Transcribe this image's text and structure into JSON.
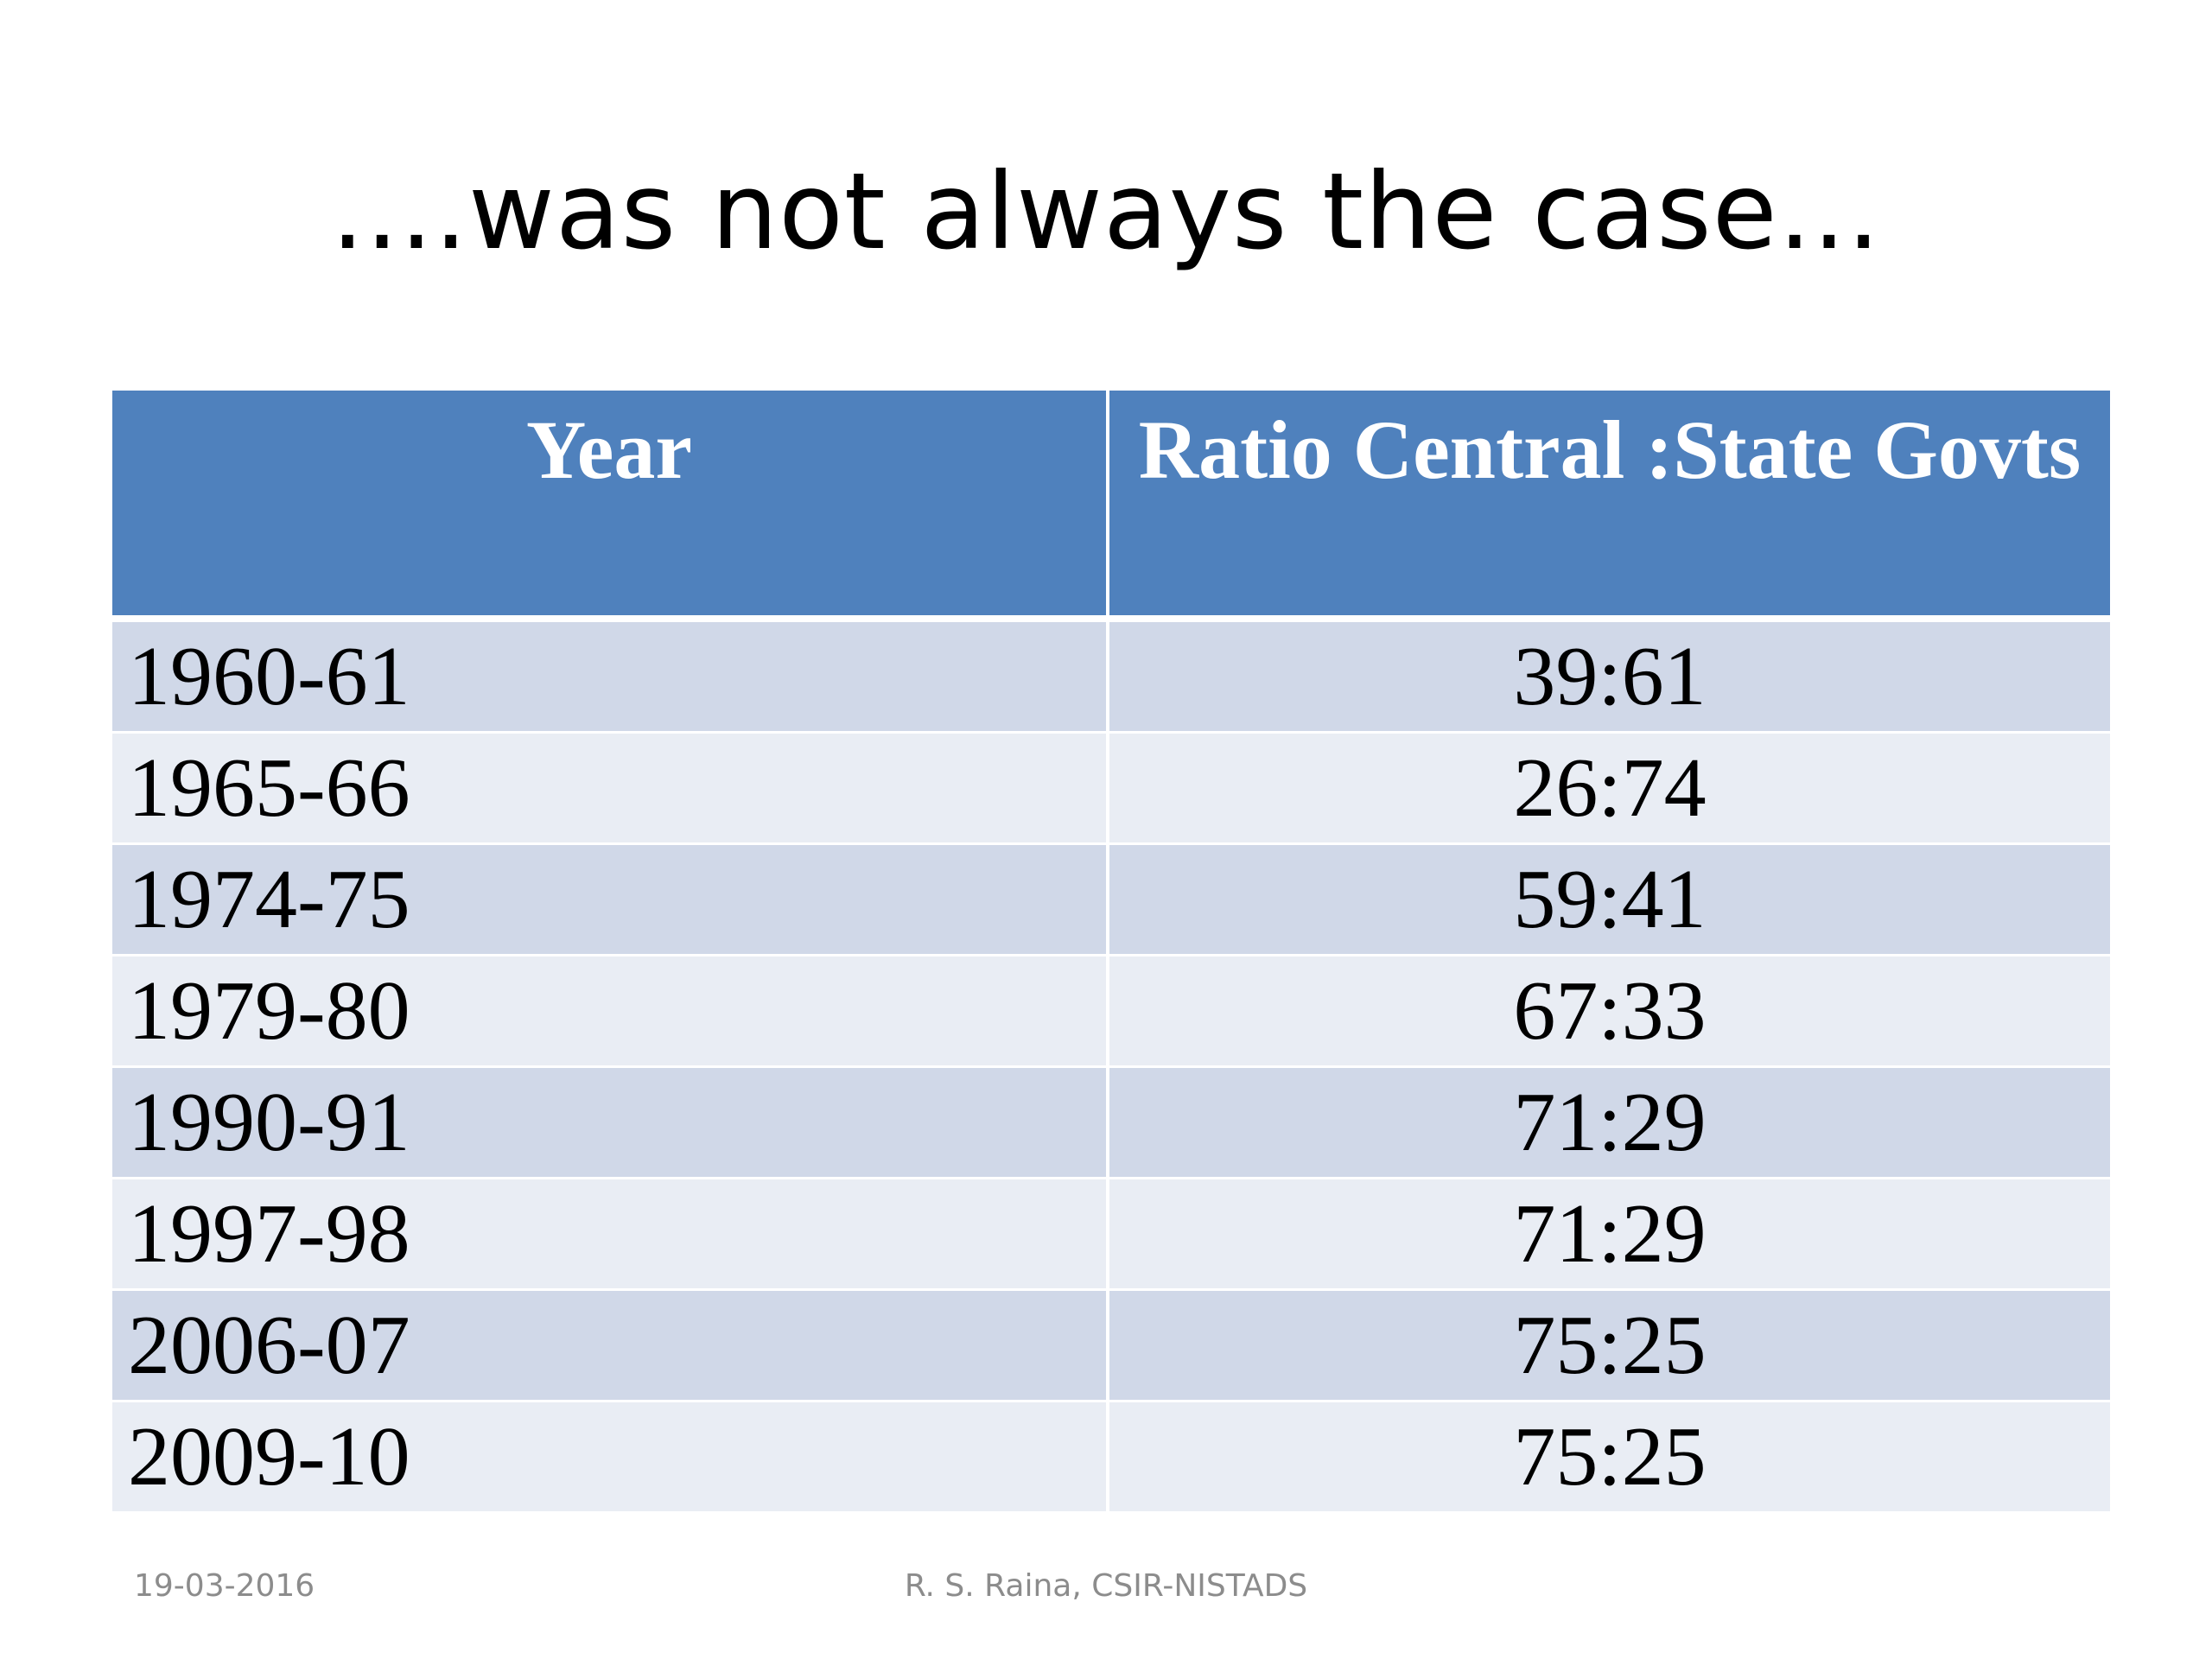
{
  "slide": {
    "title": "....was not always the case...",
    "table": {
      "headers": [
        "Year",
        "Ratio Central :State Govts"
      ],
      "rows": [
        {
          "year": "1960-61",
          "ratio": "39:61"
        },
        {
          "year": "1965-66",
          "ratio": "26:74"
        },
        {
          "year": "1974-75",
          "ratio": "59:41"
        },
        {
          "year": "1979-80",
          "ratio": "67:33"
        },
        {
          "year": "1990-91",
          "ratio": "71:29"
        },
        {
          "year": "1997-98",
          "ratio": "71:29"
        },
        {
          "year": "2006-07",
          "ratio": "75:25"
        },
        {
          "year": "2009-10",
          "ratio": "75:25"
        }
      ]
    },
    "footer": {
      "date": "19-03-2016",
      "author": "R. S. Raina, CSIR-NISTADS"
    }
  },
  "colors": {
    "header_bg": "#4f81bd",
    "row_odd": "#d0d8e8",
    "row_even": "#e9edf4",
    "footer_text": "#8c8c8c"
  }
}
